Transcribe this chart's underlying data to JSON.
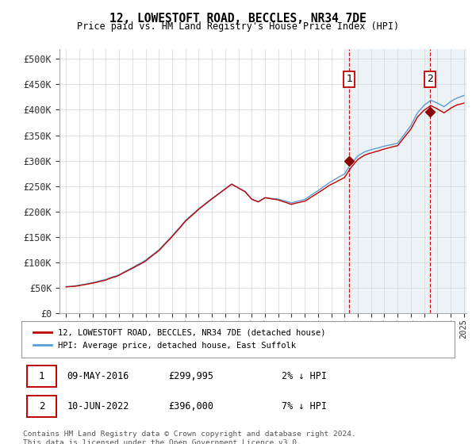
{
  "title": "12, LOWESTOFT ROAD, BECCLES, NR34 7DE",
  "subtitle": "Price paid vs. HM Land Registry's House Price Index (HPI)",
  "ylabel_ticks": [
    "£0",
    "£50K",
    "£100K",
    "£150K",
    "£200K",
    "£250K",
    "£300K",
    "£350K",
    "£400K",
    "£450K",
    "£500K"
  ],
  "ytick_values": [
    0,
    50000,
    100000,
    150000,
    200000,
    250000,
    300000,
    350000,
    400000,
    450000,
    500000
  ],
  "ylim": [
    0,
    520000
  ],
  "xlim_start": 1994.5,
  "xlim_end": 2025.2,
  "hpi_color": "#5b9bd5",
  "price_color": "#c00000",
  "marker_color": "#8b0000",
  "marker1_x": 2016.36,
  "marker1_y": 299995,
  "marker2_x": 2022.44,
  "marker2_y": 396000,
  "vline_color": "#c00000",
  "highlight_start": 2016.0,
  "highlight_bg": "#dce6f1",
  "legend_label1": "12, LOWESTOFT ROAD, BECCLES, NR34 7DE (detached house)",
  "legend_label2": "HPI: Average price, detached house, East Suffolk",
  "table_row1": [
    "1",
    "09-MAY-2016",
    "£299,995",
    "2% ↓ HPI"
  ],
  "table_row2": [
    "2",
    "10-JUN-2022",
    "£396,000",
    "7% ↓ HPI"
  ],
  "footnote": "Contains HM Land Registry data © Crown copyright and database right 2024.\nThis data is licensed under the Open Government Licence v3.0.",
  "bg_color": "#ffffff",
  "grid_color": "#d4d4d4"
}
